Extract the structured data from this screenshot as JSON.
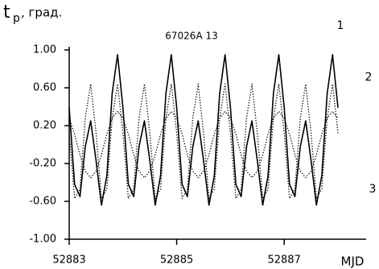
{
  "chart_data": {
    "type": "line",
    "title": "67026A  13",
    "ylabel_main": "t",
    "ylabel_sub": "р",
    "ylabel_rest": ", град.",
    "xlabel": "MJD",
    "x": [
      52883,
      52883.1,
      52883.2,
      52883.3,
      52883.4,
      52883.5,
      52883.6,
      52883.7,
      52883.8,
      52883.9,
      52884,
      52884.1,
      52884.2,
      52884.3,
      52884.4,
      52884.5,
      52884.6,
      52884.7,
      52884.8,
      52884.9,
      52885,
      52885.1,
      52885.2,
      52885.3,
      52885.4,
      52885.5,
      52885.6,
      52885.7,
      52885.8,
      52885.9,
      52886,
      52886.1,
      52886.2,
      52886.3,
      52886.4,
      52886.5,
      52886.6,
      52886.7,
      52886.8,
      52886.9,
      52887,
      52887.1,
      52887.2,
      52887.3,
      52887.4,
      52887.5,
      52887.6,
      52887.7,
      52887.8,
      52887.9,
      52888
    ],
    "series": [
      {
        "name": "1",
        "color": "#000000",
        "style": "solid",
        "values": [
          0.39,
          -0.42,
          -0.55,
          -0.02,
          0.25,
          -0.17,
          -0.64,
          -0.33,
          0.54,
          0.95,
          0.39,
          -0.42,
          -0.55,
          -0.02,
          0.25,
          -0.17,
          -0.64,
          -0.33,
          0.54,
          0.95,
          0.39,
          -0.42,
          -0.55,
          -0.02,
          0.25,
          -0.17,
          -0.64,
          -0.33,
          0.54,
          0.95,
          0.39,
          -0.42,
          -0.55,
          -0.02,
          0.25,
          -0.17,
          -0.64,
          -0.33,
          0.54,
          0.95,
          0.39,
          -0.42,
          -0.55,
          -0.02,
          0.25,
          -0.17,
          -0.64,
          -0.33,
          0.54,
          0.95,
          0.39
        ]
      },
      {
        "name": "2",
        "color": "#000000",
        "style": "dotted",
        "values": [
          0.12,
          -0.57,
          -0.47,
          0.28,
          0.64,
          0.12,
          -0.57,
          -0.47,
          0.28,
          0.64,
          0.12,
          -0.57,
          -0.47,
          0.28,
          0.64,
          0.12,
          -0.57,
          -0.47,
          0.28,
          0.64,
          0.12,
          -0.57,
          -0.47,
          0.28,
          0.64,
          0.12,
          -0.57,
          -0.47,
          0.28,
          0.64,
          0.12,
          -0.57,
          -0.47,
          0.28,
          0.64,
          0.12,
          -0.57,
          -0.47,
          0.28,
          0.64,
          0.12,
          -0.57,
          -0.47,
          0.28,
          0.64,
          0.12,
          -0.57,
          -0.47,
          0.28,
          0.64,
          0.12
        ]
      },
      {
        "name": "3",
        "color": "#000000",
        "style": "dotted",
        "values": [
          0.28,
          0.11,
          -0.11,
          -0.28,
          -0.35,
          -0.28,
          -0.11,
          0.11,
          0.28,
          0.35,
          0.28,
          0.11,
          -0.11,
          -0.28,
          -0.35,
          -0.28,
          -0.11,
          0.11,
          0.28,
          0.35,
          0.28,
          0.11,
          -0.11,
          -0.28,
          -0.35,
          -0.28,
          -0.11,
          0.11,
          0.28,
          0.35,
          0.28,
          0.11,
          -0.11,
          -0.28,
          -0.35,
          -0.28,
          -0.11,
          0.11,
          0.28,
          0.35,
          0.28,
          0.11,
          -0.11,
          -0.28,
          -0.35,
          -0.28,
          -0.11,
          0.11,
          0.28,
          0.35,
          0.28
        ]
      }
    ],
    "xlim": [
      52883,
      52888.3
    ],
    "xticks": [
      52883,
      52885,
      52887
    ],
    "ylim": [
      -1,
      1
    ],
    "yticks": [
      {
        "value": -1,
        "label": "-1.00"
      },
      {
        "value": -0.6,
        "label": "-0.60"
      },
      {
        "value": -0.2,
        "label": "-0.20"
      },
      {
        "value": 0.2,
        "label": "0.20"
      },
      {
        "value": 0.6,
        "label": "0.60"
      },
      {
        "value": 1,
        "label": "1.00"
      }
    ],
    "grid": false
  }
}
